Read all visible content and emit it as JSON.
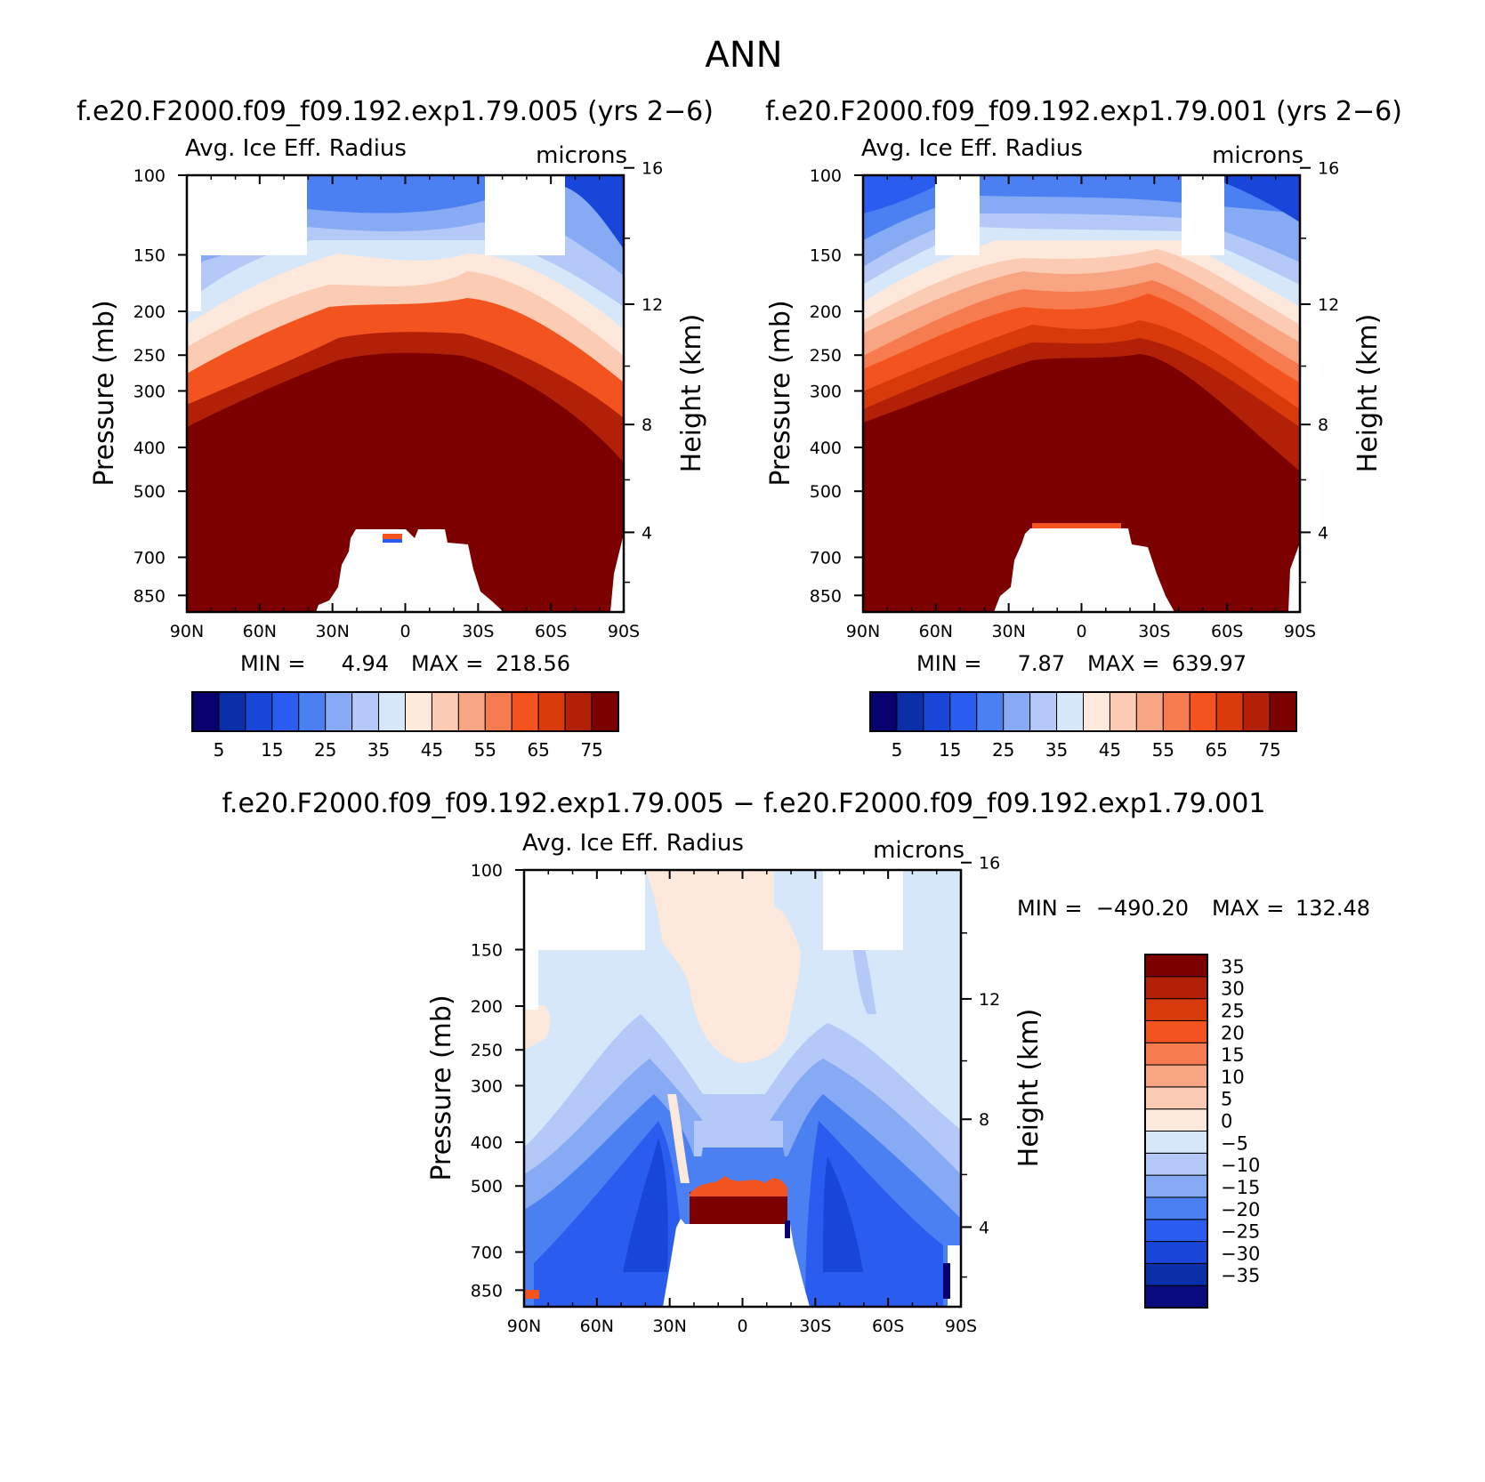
{
  "figure": {
    "title": "ANN"
  },
  "colors": {
    "seq_levels": [
      "#08006e",
      "#0a2fa8",
      "#1746d8",
      "#2a5cf0",
      "#4b80f2",
      "#86aaf4",
      "#b4c9f7",
      "#d7e7fa",
      "#fde8dc",
      "#fccbb3",
      "#f8a583",
      "#f67b4e",
      "#f3541f",
      "#d93a0a",
      "#b22008",
      "#7d0000"
    ],
    "diff_levels": [
      "#0a0a7e",
      "#0a2fa8",
      "#1746d8",
      "#2a5cf0",
      "#4b80f2",
      "#86aaf4",
      "#b4c9f7",
      "#d7e7fa",
      "#fde8dc",
      "#fccbb3",
      "#f8a583",
      "#f67b4e",
      "#f3541f",
      "#d93a0a",
      "#b22008",
      "#7d0000"
    ]
  },
  "chart_data": [
    {
      "type": "contour",
      "case_label": "f.e20.F2000.f09_f09.192.exp1.79.005 (yrs 2−6)",
      "title": "Avg. Ice Eff. Radius",
      "units": "microns",
      "ylabel": "Pressure (mb)",
      "y2label": "Height (km)",
      "x_ticks": [
        "90N",
        "60N",
        "30N",
        "0",
        "30S",
        "60S",
        "90S"
      ],
      "y_ticks": [
        100,
        150,
        200,
        250,
        300,
        400,
        500,
        700,
        850
      ],
      "y2_ticks": [
        16,
        12,
        8,
        4
      ],
      "min_label": "MIN =",
      "min_value": "4.94",
      "max_label": "MAX =",
      "max_value": "218.56",
      "colorbar_levels": [
        0,
        5,
        10,
        15,
        20,
        25,
        30,
        35,
        40,
        45,
        50,
        55,
        60,
        65,
        70,
        75
      ],
      "colorbar_labels": [
        "5",
        "15",
        "25",
        "35",
        "45",
        "55",
        "65",
        "75"
      ]
    },
    {
      "type": "contour",
      "case_label": "f.e20.F2000.f09_f09.192.exp1.79.001 (yrs 2−6)",
      "title": "Avg. Ice Eff. Radius",
      "units": "microns",
      "ylabel": "Pressure (mb)",
      "y2label": "Height (km)",
      "x_ticks": [
        "90N",
        "60N",
        "30N",
        "0",
        "30S",
        "60S",
        "90S"
      ],
      "y_ticks": [
        100,
        150,
        200,
        250,
        300,
        400,
        500,
        700,
        850
      ],
      "y2_ticks": [
        16,
        12,
        8,
        4
      ],
      "min_label": "MIN =",
      "min_value": "7.87",
      "max_label": "MAX =",
      "max_value": "639.97",
      "colorbar_levels": [
        0,
        5,
        10,
        15,
        20,
        25,
        30,
        35,
        40,
        45,
        50,
        55,
        60,
        65,
        70,
        75
      ],
      "colorbar_labels": [
        "5",
        "15",
        "25",
        "35",
        "45",
        "55",
        "65",
        "75"
      ]
    },
    {
      "type": "contour",
      "case_label": "f.e20.F2000.f09_f09.192.exp1.79.005 − f.e20.F2000.f09_f09.192.exp1.79.001",
      "title": "Avg. Ice Eff. Radius",
      "units": "microns",
      "ylabel": "Pressure (mb)",
      "y2label": "Height (km)",
      "x_ticks": [
        "90N",
        "60N",
        "30N",
        "0",
        "30S",
        "60S",
        "90S"
      ],
      "y_ticks": [
        100,
        150,
        200,
        250,
        300,
        400,
        500,
        700,
        850
      ],
      "y2_ticks": [
        16,
        12,
        8,
        4
      ],
      "min_label": "MIN =",
      "min_value": "−490.20",
      "max_label": "MAX =",
      "max_value": "132.48",
      "colorbar_levels": [
        35,
        30,
        25,
        20,
        15,
        10,
        5,
        0,
        -5,
        -10,
        -15,
        -20,
        -25,
        -30,
        -35
      ],
      "colorbar_labels": [
        "35",
        "30",
        "25",
        "20",
        "15",
        "10",
        "5",
        "0",
        "−5",
        "−10",
        "−15",
        "−20",
        "−25",
        "−30",
        "−35"
      ]
    }
  ]
}
